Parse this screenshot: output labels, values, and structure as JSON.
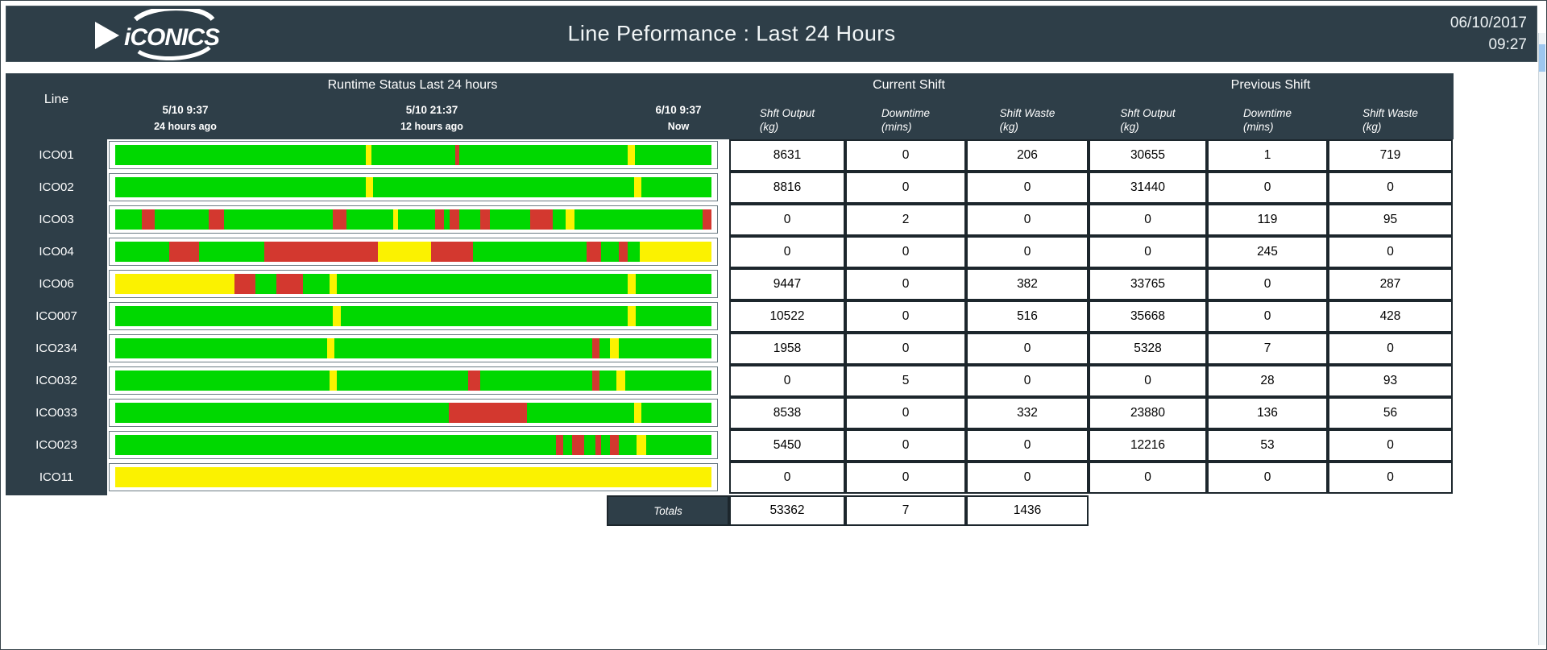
{
  "topbar": {
    "logo_text": "iCONICS",
    "title": "Line Peformance : Last 24 Hours",
    "date": "06/10/2017",
    "time": "09:27"
  },
  "colors": {
    "band_bg": "#2e3e48",
    "run": "#00d800",
    "stop": "#d3382f",
    "idle": "#fbf200"
  },
  "table": {
    "line_header": "Line",
    "runtime_header": "Runtime Status Last 24 hours",
    "timeline": [
      {
        "time": "5/10 9:37",
        "sub": "24 hours ago"
      },
      {
        "time": "5/10 21:37",
        "sub": "12 hours ago"
      },
      {
        "time": "6/10 9:37",
        "sub": "Now"
      }
    ],
    "groups": [
      {
        "label": "Current Shift"
      },
      {
        "label": "Previous Shift"
      }
    ],
    "columns": [
      {
        "name": "Shft Output",
        "unit": "(kg)"
      },
      {
        "name": "Downtime",
        "unit": "(mins)"
      },
      {
        "name": "Shift Waste",
        "unit": "(kg)"
      },
      {
        "name": "Shft Output",
        "unit": "(kg)"
      },
      {
        "name": "Downtime",
        "unit": "(mins)"
      },
      {
        "name": "Shift Waste",
        "unit": "(kg)"
      }
    ],
    "rows": [
      {
        "line": "ICO01",
        "segments": [
          [
            "run",
            42
          ],
          [
            "idle",
            1
          ],
          [
            "run",
            14
          ],
          [
            "stop",
            0.7
          ],
          [
            "run",
            28.3
          ],
          [
            "idle",
            1.2
          ],
          [
            "run",
            12.8
          ]
        ],
        "values": [
          "8631",
          "0",
          "206",
          "30655",
          "1",
          "719"
        ]
      },
      {
        "line": "ICO02",
        "segments": [
          [
            "run",
            42
          ],
          [
            "idle",
            1.2
          ],
          [
            "run",
            43.8
          ],
          [
            "idle",
            1.2
          ],
          [
            "run",
            11.8
          ]
        ],
        "values": [
          "8816",
          "0",
          "0",
          "31440",
          "0",
          "0"
        ]
      },
      {
        "line": "ICO03",
        "segments": [
          [
            "run",
            4.4
          ],
          [
            "stop",
            2.2
          ],
          [
            "run",
            9.1
          ],
          [
            "stop",
            2.5
          ],
          [
            "run",
            18.3
          ],
          [
            "stop",
            2.3
          ],
          [
            "run",
            7.8
          ],
          [
            "idle",
            0.8
          ],
          [
            "run",
            6.3
          ],
          [
            "stop",
            1.4
          ],
          [
            "run",
            1
          ],
          [
            "stop",
            1.6
          ],
          [
            "run",
            3.5
          ],
          [
            "stop",
            1.6
          ],
          [
            "run",
            6.8
          ],
          [
            "stop",
            3.8
          ],
          [
            "run",
            2.1
          ],
          [
            "idle",
            1.5
          ],
          [
            "run",
            21.6
          ],
          [
            "stop",
            1.4
          ]
        ],
        "values": [
          "0",
          "2",
          "0",
          "0",
          "119",
          "95"
        ]
      },
      {
        "line": "ICO04",
        "segments": [
          [
            "run",
            9
          ],
          [
            "stop",
            5
          ],
          [
            "run",
            11
          ],
          [
            "stop",
            19
          ],
          [
            "idle",
            9
          ],
          [
            "stop",
            7
          ],
          [
            "run",
            19
          ],
          [
            "stop",
            2.5
          ],
          [
            "run",
            3
          ],
          [
            "stop",
            1.5
          ],
          [
            "run",
            2
          ],
          [
            "idle",
            12
          ]
        ],
        "values": [
          "0",
          "0",
          "0",
          "0",
          "245",
          "0"
        ]
      },
      {
        "line": "ICO06",
        "segments": [
          [
            "idle",
            20
          ],
          [
            "stop",
            3.5
          ],
          [
            "run",
            3.5
          ],
          [
            "stop",
            4.5
          ],
          [
            "run",
            4.5
          ],
          [
            "idle",
            1.2
          ],
          [
            "run",
            48.8
          ],
          [
            "idle",
            1.3
          ],
          [
            "run",
            12.7
          ]
        ],
        "values": [
          "9447",
          "0",
          "382",
          "33765",
          "0",
          "287"
        ]
      },
      {
        "line": "ICO007",
        "segments": [
          [
            "run",
            36.5
          ],
          [
            "idle",
            1.3
          ],
          [
            "run",
            48.2
          ],
          [
            "idle",
            1.3
          ],
          [
            "run",
            12.7
          ]
        ],
        "values": [
          "10522",
          "0",
          "516",
          "35668",
          "0",
          "428"
        ]
      },
      {
        "line": "ICO234",
        "segments": [
          [
            "run",
            35.5
          ],
          [
            "idle",
            1.3
          ],
          [
            "run",
            43.2
          ],
          [
            "stop",
            1.2
          ],
          [
            "run",
            1.8
          ],
          [
            "idle",
            1.5
          ],
          [
            "run",
            15.5
          ]
        ],
        "values": [
          "1958",
          "0",
          "0",
          "5328",
          "7",
          "0"
        ]
      },
      {
        "line": "ICO032",
        "segments": [
          [
            "run",
            36
          ],
          [
            "idle",
            1.2
          ],
          [
            "run",
            22
          ],
          [
            "stop",
            2
          ],
          [
            "run",
            18.8
          ],
          [
            "stop",
            1.2
          ],
          [
            "run",
            2.8
          ],
          [
            "idle",
            1.5
          ],
          [
            "run",
            14.5
          ]
        ],
        "values": [
          "0",
          "5",
          "0",
          "0",
          "28",
          "93"
        ]
      },
      {
        "line": "ICO033",
        "segments": [
          [
            "run",
            56
          ],
          [
            "stop",
            13
          ],
          [
            "run",
            18
          ],
          [
            "idle",
            1.3
          ],
          [
            "run",
            11.7
          ]
        ],
        "values": [
          "8538",
          "0",
          "332",
          "23880",
          "136",
          "56"
        ]
      },
      {
        "line": "ICO023",
        "segments": [
          [
            "run",
            73.9
          ],
          [
            "stop",
            1.3
          ],
          [
            "run",
            1.4
          ],
          [
            "stop",
            2
          ],
          [
            "run",
            1.9
          ],
          [
            "stop",
            1
          ],
          [
            "run",
            1.5
          ],
          [
            "stop",
            1.5
          ],
          [
            "run",
            3
          ],
          [
            "idle",
            1.5
          ],
          [
            "run",
            11
          ]
        ],
        "values": [
          "5450",
          "0",
          "0",
          "12216",
          "53",
          "0"
        ]
      },
      {
        "line": "ICO11",
        "segments": [
          [
            "idle",
            100
          ]
        ],
        "values": [
          "0",
          "0",
          "0",
          "0",
          "0",
          "0"
        ]
      }
    ],
    "totals": {
      "label": "Totals",
      "values": [
        "53362",
        "7",
        "1436"
      ]
    }
  }
}
